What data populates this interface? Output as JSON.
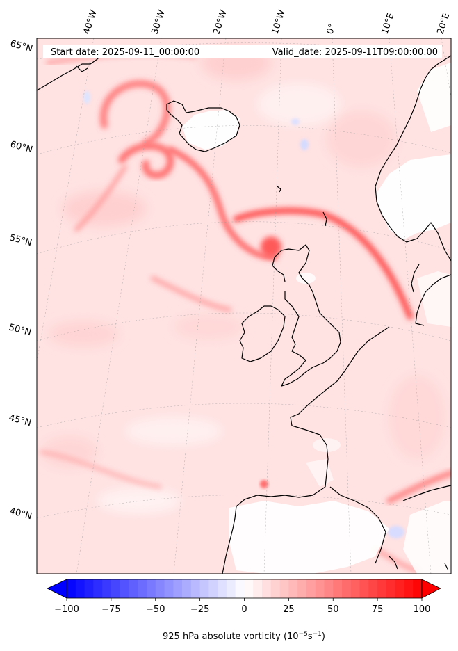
{
  "map": {
    "header": {
      "start_text": "Start date: 2025-09-11_00:00:00",
      "valid_text": "Valid_date: 2025-09-11T09:00:00.00"
    },
    "lon_labels": [
      "40°W",
      "30°W",
      "20°W",
      "10°W",
      "0°",
      "10°E",
      "20°E"
    ],
    "lat_labels": [
      "65°N",
      "60°N",
      "55°N",
      "50°N",
      "45°N",
      "40°N"
    ],
    "colorbar": {
      "label_main": "925 hPa absolute vorticity (10",
      "label_exp1": "−5",
      "label_mid": "s",
      "label_exp2": "−1",
      "label_end": ")",
      "ticks": [
        "−100",
        "−75",
        "−50",
        "−25",
        "0",
        "25",
        "50",
        "75",
        "100"
      ],
      "tick_values": [
        -100,
        -75,
        -50,
        -25,
        0,
        25,
        50,
        75,
        100
      ],
      "min": -100,
      "max": 100,
      "step": 5,
      "colormap": "bwr",
      "extend": "both"
    },
    "colors": {
      "background_field": "#ffe0e0",
      "vorticity_max": "#ff0000",
      "vorticity_min": "#0000ff",
      "coastline": "#000000",
      "land_low": "#ffffff"
    }
  }
}
